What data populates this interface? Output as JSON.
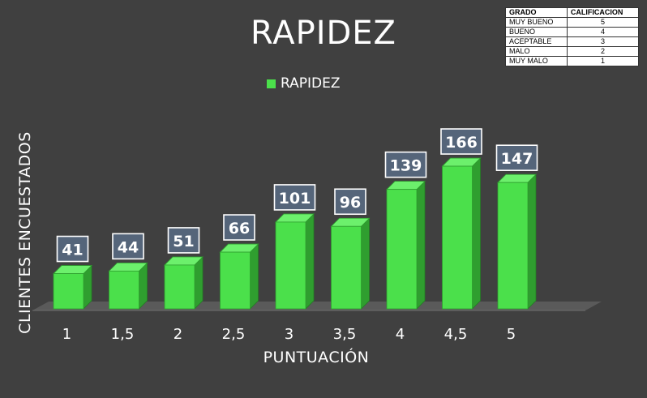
{
  "colors": {
    "background": "#404040",
    "bar_front": "#4be04b",
    "bar_side": "#2f9e2f",
    "bar_top": "#6cf06c",
    "label_box": "#55657a"
  },
  "legend_label": "RAPIDEZ",
  "chart_data": {
    "type": "bar",
    "title": "RAPIDEZ",
    "xlabel": "PUNTUACIÓN",
    "ylabel": "CLIENTES ENCUESTADOS",
    "categories": [
      "1",
      "1,5",
      "2",
      "2,5",
      "3",
      "3,5",
      "4",
      "4,5",
      "5"
    ],
    "series": [
      {
        "name": "RAPIDEZ",
        "values": [
          41,
          44,
          51,
          66,
          101,
          96,
          139,
          166,
          147
        ]
      }
    ],
    "ylim": [
      0,
      180
    ],
    "grid": false,
    "legend": "top"
  },
  "grade_table": {
    "headers": [
      "GRADO",
      "CALIFICACION"
    ],
    "rows": [
      [
        "MUY BUENO",
        "5"
      ],
      [
        "BUENO",
        "4"
      ],
      [
        "ACEPTABLE",
        "3"
      ],
      [
        "MALO",
        "2"
      ],
      [
        "MUY MALO",
        "1"
      ]
    ]
  }
}
